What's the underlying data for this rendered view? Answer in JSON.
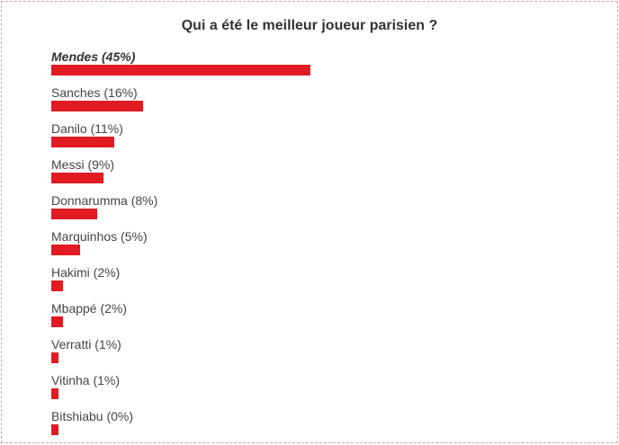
{
  "poll": {
    "title": "Qui a été le meilleur joueur parisien ?",
    "bar_color": "#e21b23",
    "options": [
      {
        "label": "Mendes (45%)",
        "percent": 45,
        "leading": true
      },
      {
        "label": "Sanches (16%)",
        "percent": 16
      },
      {
        "label": "Danilo (11%)",
        "percent": 11
      },
      {
        "label": "Messi (9%)",
        "percent": 9
      },
      {
        "label": "Donnarumma (8%)",
        "percent": 8
      },
      {
        "label": "Marquinhos (5%)",
        "percent": 5
      },
      {
        "label": "Hakimi (2%)",
        "percent": 2
      },
      {
        "label": "Mbappé (2%)",
        "percent": 2
      },
      {
        "label": "Verratti (1%)",
        "percent": 1
      },
      {
        "label": "Vitinha (1%)",
        "percent": 1
      },
      {
        "label": "Bitshiabu (0%)",
        "percent": 0
      }
    ]
  }
}
